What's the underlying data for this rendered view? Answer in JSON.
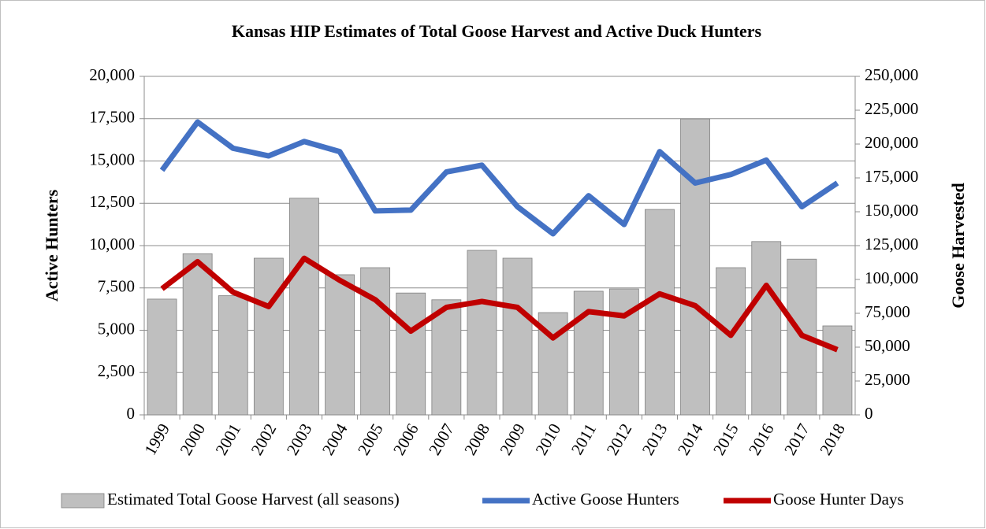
{
  "chart_data": {
    "type": "combo",
    "title": "Kansas HIP Estimates of Total Goose Harvest and Active Duck Hunters",
    "y_label": "Active Hunters",
    "y2_label": "Goose Harvested",
    "categories": [
      "1999",
      "2000",
      "2001",
      "2002",
      "2003",
      "2004",
      "2005",
      "2006",
      "2007",
      "2008",
      "2009",
      "2010",
      "2011",
      "2012",
      "2013",
      "2014",
      "2015",
      "2016",
      "2017",
      "2018"
    ],
    "series": [
      {
        "name": "Estimated Total Goose Harvest (all seasons)",
        "type": "bar",
        "axis": "y2",
        "color": "#bfbfbf",
        "values": [
          85500,
          119000,
          88000,
          115700,
          160000,
          103500,
          108700,
          90000,
          85000,
          121500,
          115700,
          75500,
          91300,
          93000,
          151700,
          218600,
          108700,
          128000,
          115000,
          65700
        ]
      },
      {
        "name": "Active Goose Hunters",
        "type": "line",
        "color": "#4472c4",
        "values": [
          14450,
          17300,
          15750,
          15300,
          16150,
          15550,
          12050,
          12100,
          14350,
          14750,
          12300,
          10700,
          12950,
          11250,
          15550,
          13700,
          14200,
          15050,
          12300,
          13700
        ]
      },
      {
        "name": "Goose Hunter Days",
        "type": "line",
        "color": "#c00000",
        "values": [
          7450,
          9050,
          7250,
          6400,
          9250,
          7950,
          6800,
          4950,
          6350,
          6700,
          6350,
          4550,
          6100,
          5850,
          7150,
          6450,
          4700,
          7650,
          4700,
          3850
        ]
      }
    ],
    "ylim": [
      0,
      20000
    ],
    "yticks": [
      0,
      {
        "value": 2500,
        "label": "2,500"
      },
      {
        "value": 5000,
        "label": "5,000"
      },
      {
        "value": 7500,
        "label": "7,500"
      },
      {
        "value": 10000,
        "label": "10,000"
      },
      {
        "value": 12500,
        "label": "12,500"
      },
      {
        "value": 15000,
        "label": "15,000"
      },
      {
        "value": 17500,
        "label": "17,500"
      },
      {
        "value": 20000,
        "label": "20,000"
      }
    ],
    "y2lim": [
      0,
      250000
    ],
    "y2ticks": [
      0,
      {
        "value": 25000,
        "label": "25,000"
      },
      {
        "value": 50000,
        "label": "50,000"
      },
      {
        "value": 75000,
        "label": "75,000"
      },
      {
        "value": 100000,
        "label": "100,000"
      },
      {
        "value": 125000,
        "label": "125,000"
      },
      {
        "value": 150000,
        "label": "150,000"
      },
      {
        "value": 175000,
        "label": "175,000"
      },
      {
        "value": 200000,
        "label": "200,000"
      },
      {
        "value": 225000,
        "label": "225,000"
      },
      {
        "value": 250000,
        "label": "250,000"
      }
    ],
    "grid": true,
    "legend": "bottom"
  }
}
